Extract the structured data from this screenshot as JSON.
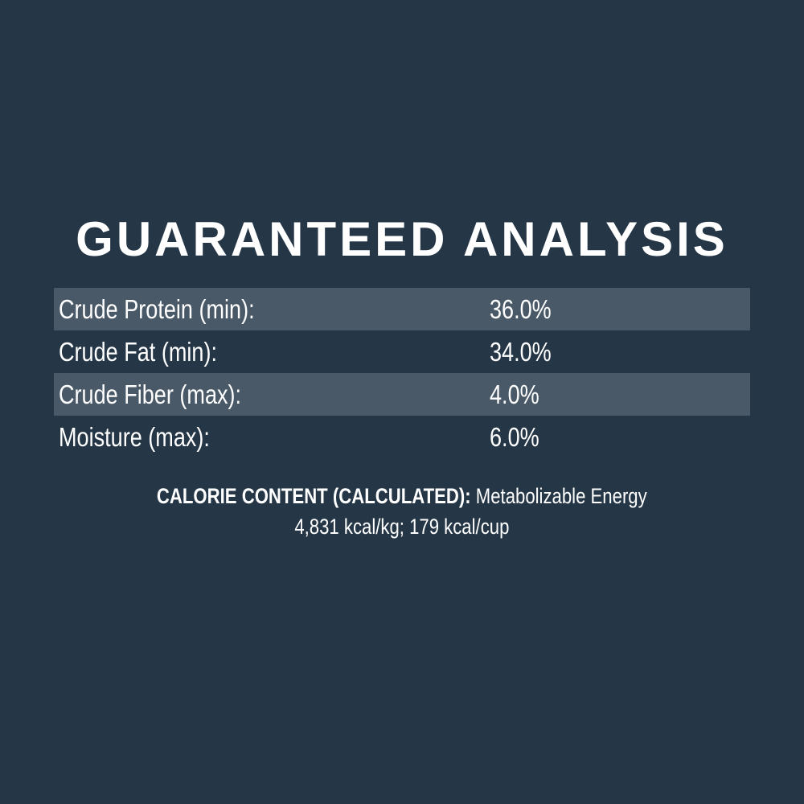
{
  "title": "GUARANTEED ANALYSIS",
  "rows": [
    {
      "label": "Crude Protein (min):",
      "value": "36.0%"
    },
    {
      "label": "Crude Fat (min):",
      "value": "34.0%"
    },
    {
      "label": "Crude Fiber (max):",
      "value": "4.0%"
    },
    {
      "label": "Moisture (max):",
      "value": "6.0%"
    }
  ],
  "calorie": {
    "heading": "CALORIE CONTENT (CALCULATED):",
    "line1": "Metabolizable Energy",
    "line2": "4,831 kcal/kg; 179 kcal/cup"
  },
  "colors": {
    "background": "#253646",
    "stripe": "#4a5968",
    "text": "#ffffff"
  }
}
